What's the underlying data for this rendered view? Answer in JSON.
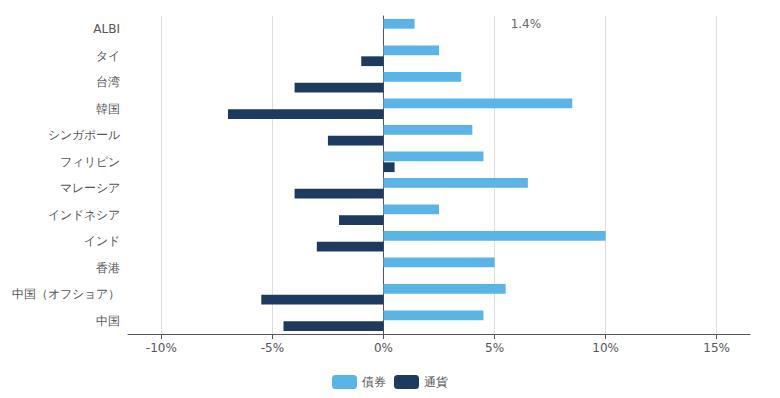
{
  "chart_data": {
    "type": "bar",
    "orientation": "horizontal",
    "categories": [
      "ALBI",
      "タイ",
      "台湾",
      "韓国",
      "シンガポール",
      "フィリピン",
      "マレーシア",
      "インドネシア",
      "インド",
      "香港",
      "中国（オフショア）",
      "中国"
    ],
    "series": [
      {
        "name": "債券",
        "color": "#5ab4e5",
        "values": [
          1.4,
          2.5,
          3.5,
          8.5,
          4.0,
          4.5,
          6.5,
          2.5,
          10.0,
          5.0,
          5.5,
          4.5
        ]
      },
      {
        "name": "通貨",
        "color": "#1e3a5f",
        "values": [
          0.0,
          -1.0,
          -4.0,
          -7.0,
          -2.5,
          0.5,
          -4.0,
          -2.0,
          -3.0,
          0.0,
          -5.5,
          -4.5
        ]
      }
    ],
    "xlim": [
      -11.5,
      16.5
    ],
    "xticks": [
      {
        "value": -10,
        "label": "-10%"
      },
      {
        "value": -5,
        "label": "-5%"
      },
      {
        "value": 0,
        "label": "0%"
      },
      {
        "value": 5,
        "label": "5%"
      },
      {
        "value": 10,
        "label": "10%"
      },
      {
        "value": 15,
        "label": "15%"
      }
    ],
    "annotations": [
      {
        "text": "1.4%",
        "x": 5.5,
        "category": "ALBI"
      }
    ],
    "grid": true,
    "legend": "bottom"
  }
}
